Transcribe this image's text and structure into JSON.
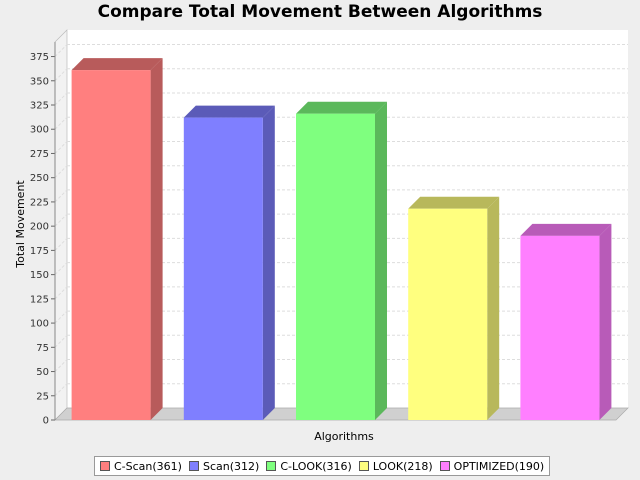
{
  "chart_data": {
    "type": "bar",
    "title": "Compare Total Movement Between Algorithms",
    "xlabel": "Algorithms",
    "ylabel": "Total Movement",
    "ylim": [
      0,
      390
    ],
    "yticks": [
      0,
      25,
      50,
      75,
      100,
      125,
      150,
      175,
      200,
      225,
      250,
      275,
      300,
      325,
      350,
      375
    ],
    "grid": true,
    "legend_position": "bottom",
    "categories": [
      "C-Scan",
      "Scan",
      "C-LOOK",
      "LOOK",
      "OPTIMIZED"
    ],
    "values": [
      361,
      312,
      316,
      218,
      190
    ],
    "colors": [
      "#ff7f7f",
      "#7f7fff",
      "#7fff7f",
      "#ffff7f",
      "#ff7fff"
    ],
    "legend": [
      "C-Scan(361)",
      "Scan(312)",
      "C-LOOK(316)",
      "LOOK(218)",
      "OPTIMIZED(190)"
    ]
  }
}
